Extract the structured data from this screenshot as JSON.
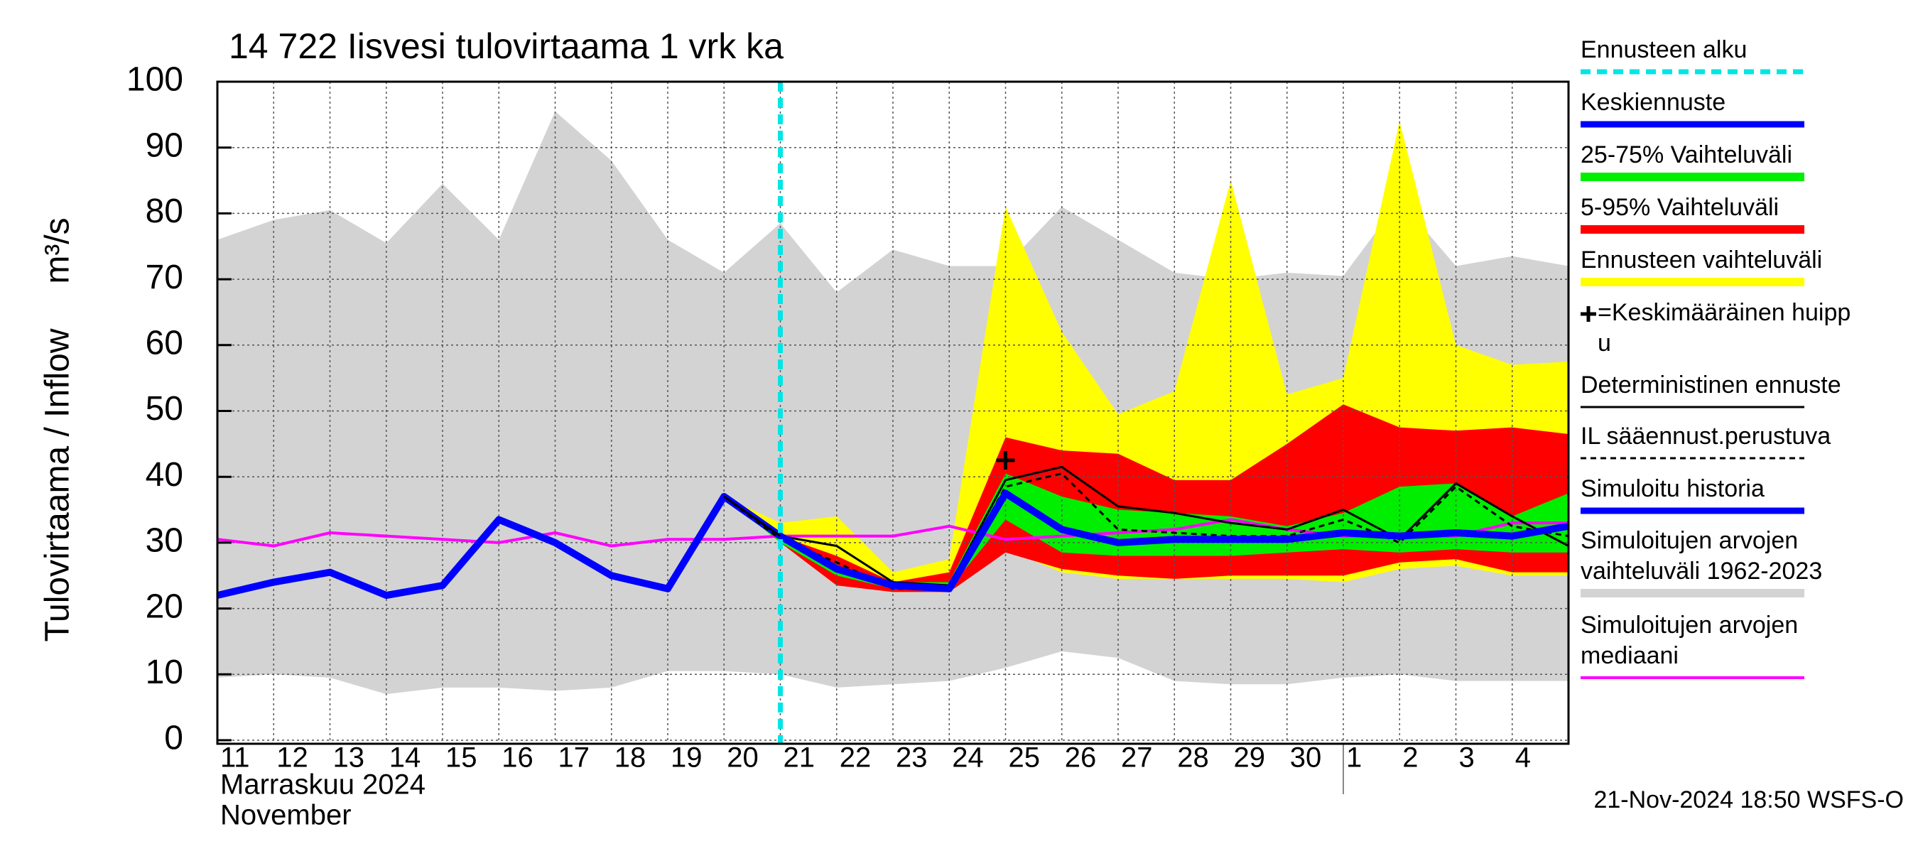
{
  "chart_data": {
    "type": "line",
    "title": "14 722 Iisvesi tulovirtaama 1 vrk ka",
    "ylabel": "Tulovirtaama / Inflow",
    "yunit": "m³/s",
    "categories": [
      "11",
      "12",
      "13",
      "14",
      "15",
      "16",
      "17",
      "18",
      "19",
      "20",
      "21",
      "22",
      "23",
      "24",
      "25",
      "26",
      "27",
      "28",
      "29",
      "30",
      "1",
      "2",
      "3",
      "4",
      null
    ],
    "x_sublabels": [
      "Marraskuu 2024",
      "November"
    ],
    "footer": "21-Nov-2024 18:50 WSFS-O",
    "ylim": [
      0,
      100
    ],
    "yticks": [
      0,
      10,
      20,
      30,
      40,
      50,
      60,
      70,
      80,
      90,
      100
    ],
    "grid": true,
    "series": [
      {
        "name": [
          "Ennusteen alku"
        ],
        "kind": "vline",
        "color": "#00e5e5",
        "dash": true,
        "linewidth": 7,
        "category": "21"
      },
      {
        "name": [
          "Keskiennuste"
        ],
        "kind": "line",
        "color": "#0000ff",
        "linewidth": 10,
        "values": [
          null,
          null,
          null,
          null,
          null,
          null,
          null,
          null,
          null,
          null,
          31,
          26,
          23.5,
          23,
          37.5,
          32,
          30,
          30.5,
          30.5,
          30.5,
          31.5,
          31,
          31.5,
          31,
          32.5
        ]
      },
      {
        "name": [
          "25-75% Vaihteluväli"
        ],
        "kind": "band",
        "color": "#00ee00",
        "upper": [
          null,
          null,
          null,
          null,
          null,
          null,
          null,
          null,
          null,
          37,
          30.5,
          26.5,
          24,
          24,
          40.5,
          37,
          35,
          34.5,
          34,
          32.5,
          34.5,
          38.5,
          39,
          34,
          37.5
        ],
        "lower": [
          null,
          null,
          null,
          null,
          null,
          null,
          null,
          null,
          null,
          37,
          30,
          25,
          23,
          23,
          33.5,
          28.5,
          28,
          28,
          28,
          28.5,
          29,
          28.5,
          29,
          28.5,
          28.5
        ]
      },
      {
        "name": [
          "5-95% Vaihteluväli"
        ],
        "kind": "band",
        "color": "#ff0000",
        "upper": [
          null,
          null,
          null,
          null,
          null,
          null,
          null,
          null,
          null,
          37,
          31,
          28,
          24,
          25.5,
          46,
          44,
          43.5,
          39.5,
          39.5,
          45,
          51,
          47.5,
          47,
          47.5,
          46.5
        ],
        "lower": [
          null,
          null,
          null,
          null,
          null,
          null,
          null,
          null,
          null,
          37,
          30,
          23.5,
          22.5,
          22.5,
          28.5,
          26,
          25,
          24.5,
          25,
          25,
          25,
          27,
          27.5,
          25.5,
          25.5
        ]
      },
      {
        "name": [
          "Ennusteen vaihteluväli"
        ],
        "kind": "band",
        "color": "#ffff00",
        "upper": [
          null,
          null,
          null,
          null,
          null,
          null,
          null,
          null,
          null,
          37,
          33,
          34,
          25.5,
          27.5,
          81,
          62,
          49.5,
          53,
          85,
          52.5,
          55,
          94,
          60,
          57,
          57.5
        ],
        "lower": [
          null,
          null,
          null,
          null,
          null,
          null,
          null,
          null,
          null,
          37,
          30,
          24,
          22.5,
          22.5,
          29,
          25.5,
          24.5,
          24.5,
          24.5,
          24.5,
          24,
          26,
          26.5,
          25,
          25
        ]
      },
      {
        "name": [
          "=Keskimääräinen huipp",
          "u"
        ],
        "kind": "marker",
        "color": "#000000",
        "category": "25",
        "value": 42.5
      },
      {
        "name": [
          "Deterministinen ennuste"
        ],
        "kind": "line",
        "color": "#000000",
        "linewidth": 3,
        "values": [
          null,
          null,
          null,
          null,
          null,
          null,
          null,
          null,
          null,
          37,
          31,
          29.5,
          24,
          23.5,
          39.5,
          41.5,
          35.5,
          34.5,
          33,
          32,
          35,
          30.5,
          39,
          34,
          29.5
        ]
      },
      {
        "name": [
          "IL sääennust.perustuva"
        ],
        "kind": "line",
        "color": "#000000",
        "dash": true,
        "linewidth": 3,
        "values": [
          null,
          null,
          null,
          null,
          null,
          null,
          null,
          null,
          null,
          37,
          30.5,
          27,
          23,
          23,
          38.5,
          40.5,
          32,
          31.5,
          31,
          31,
          33.5,
          30,
          38.5,
          32.5,
          31
        ]
      },
      {
        "name": [
          "Simuloitu historia"
        ],
        "kind": "line",
        "color": "#0000ff",
        "linewidth": 10,
        "values": [
          22,
          24,
          25.5,
          22,
          23.5,
          33.5,
          30,
          25,
          23,
          37,
          31,
          null,
          null,
          null,
          null,
          null,
          null,
          null,
          null,
          null,
          null,
          null,
          null,
          null,
          null
        ]
      },
      {
        "name": [
          "Simuloitujen arvojen",
          "vaihteluväli 1962-2023"
        ],
        "kind": "band",
        "color": "#d3d3d3",
        "upper": [
          76,
          79,
          80.5,
          75.5,
          84.5,
          76,
          95.5,
          88,
          76,
          71,
          78.5,
          68,
          74.5,
          72,
          72,
          81,
          76,
          71,
          70,
          71,
          70.5,
          82,
          72,
          73.5,
          72
        ],
        "lower": [
          9.5,
          10,
          9.5,
          7,
          8,
          8,
          7.5,
          8,
          10.5,
          10.5,
          10,
          8,
          8.5,
          9,
          11,
          13.5,
          12.5,
          9,
          8.5,
          8.5,
          9.5,
          10,
          9,
          9,
          9
        ]
      },
      {
        "name": [
          "Simuloitujen arvojen",
          "mediaani"
        ],
        "kind": "line",
        "color": "#ff00ff",
        "linewidth": 4,
        "values": [
          30.5,
          29.5,
          31.5,
          31,
          30.5,
          30,
          31.5,
          29.5,
          30.5,
          30.5,
          31,
          31,
          31,
          32.5,
          30.5,
          31,
          31.5,
          32,
          33.5,
          32,
          31,
          31,
          31,
          33,
          33
        ]
      }
    ]
  }
}
